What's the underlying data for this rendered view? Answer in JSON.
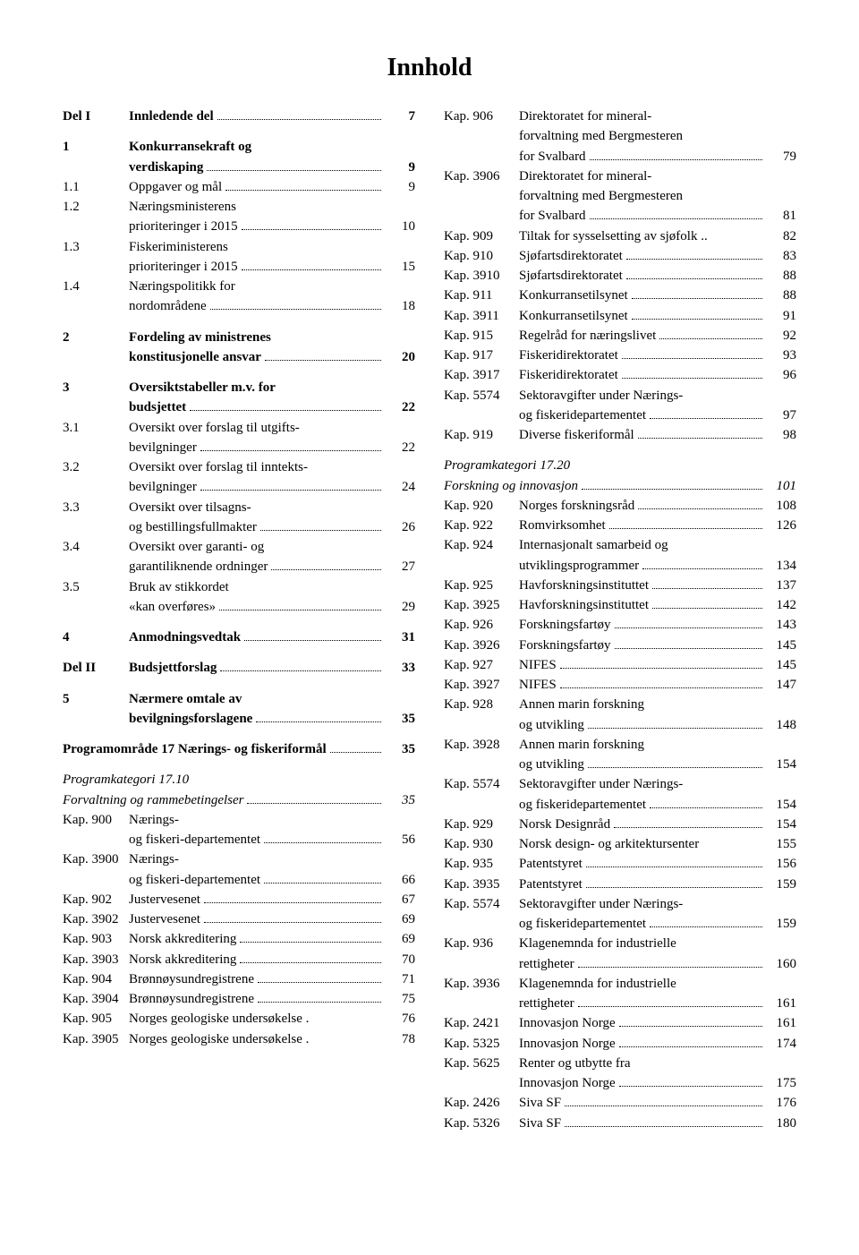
{
  "title": "Innhold",
  "col1": [
    {
      "lbl": "Del I",
      "text": "Innledende del",
      "page": "7",
      "bold": true,
      "multiline": false
    },
    {
      "spacer": true
    },
    {
      "lbl": "1",
      "text": "Konkurransekraft og verdiskaping",
      "page": "9",
      "bold": true,
      "multiline": true
    },
    {
      "lbl": "1.1",
      "text": "Oppgaver og mål",
      "page": "9",
      "multiline": false
    },
    {
      "lbl": "1.2",
      "text": "Næringsministerens prioriteringer i 2015",
      "page": "10",
      "multiline": true
    },
    {
      "lbl": "1.3",
      "text": "Fiskeriministerens prioriteringer i 2015",
      "page": "15",
      "multiline": true
    },
    {
      "lbl": "1.4",
      "text": "Næringspolitikk for nordområdene",
      "page": "18",
      "multiline": true
    },
    {
      "spacer": true
    },
    {
      "lbl": "2",
      "text": "Fordeling av ministrenes konstitusjonelle ansvar",
      "page": "20",
      "bold": true,
      "multiline": true
    },
    {
      "spacer": true
    },
    {
      "lbl": "3",
      "text": "Oversiktstabeller m.v. for budsjettet",
      "page": "22",
      "bold": true,
      "multiline": true
    },
    {
      "lbl": "3.1",
      "text": "Oversikt over forslag til utgifts-bevilgninger",
      "page": "22",
      "multiline": true,
      "hyphen": true
    },
    {
      "lbl": "3.2",
      "text": "Oversikt over forslag til inntekts-bevilgninger",
      "page": "24",
      "multiline": true,
      "hyphen": true
    },
    {
      "lbl": "3.3",
      "text": "Oversikt over tilsagns- og bestillingsfullmakter",
      "page": "26",
      "multiline": true
    },
    {
      "lbl": "3.4",
      "text": "Oversikt over garanti- og garantiliknende ordninger",
      "page": "27",
      "multiline": true
    },
    {
      "lbl": "3.5",
      "text": "Bruk av stikkordet «kan overføres»",
      "page": "29",
      "multiline": true
    },
    {
      "spacer": true
    },
    {
      "lbl": "4",
      "text": "Anmodningsvedtak",
      "page": "31",
      "bold": true,
      "multiline": false
    },
    {
      "spacer": true
    },
    {
      "lbl": "Del II",
      "text": "Budsjettforslag",
      "page": "33",
      "bold": true,
      "multiline": false
    },
    {
      "spacer": true
    },
    {
      "lbl": "5",
      "text": "Nærmere omtale av bevilgningsforslagene",
      "page": "35",
      "bold": true,
      "multiline": true
    },
    {
      "spacer": true
    },
    {
      "heading": true,
      "text": "Programområde 17 Nærings- og fiskeriformål",
      "page": "35",
      "bold": true
    },
    {
      "spacer": true
    },
    {
      "heading": true,
      "text": "Programkategori 17.10",
      "noPage": true,
      "italic": true
    },
    {
      "heading": true,
      "text": "Forvaltning og rammebetingelser",
      "page": "35",
      "italic": true
    },
    {
      "lbl": "Kap. 900",
      "text": "Nærings- og fiskeri-departementet",
      "page": "56",
      "multiline": true,
      "hyphen": true
    },
    {
      "lbl": "Kap. 3900",
      "text": "Nærings- og fiskeri-departementet",
      "page": "66",
      "multiline": true,
      "hyphen": true
    },
    {
      "lbl": "Kap. 902",
      "text": "Justervesenet",
      "page": "67",
      "multiline": false
    },
    {
      "lbl": "Kap. 3902",
      "text": "Justervesenet",
      "page": "69",
      "multiline": false
    },
    {
      "lbl": "Kap. 903",
      "text": "Norsk akkreditering",
      "page": "69",
      "multiline": false
    },
    {
      "lbl": "Kap. 3903",
      "text": "Norsk akkreditering",
      "page": "70",
      "multiline": false
    },
    {
      "lbl": "Kap. 904",
      "text": "Brønnøysundregistrene",
      "page": "71",
      "multiline": false
    },
    {
      "lbl": "Kap. 3904",
      "text": "Brønnøysundregistrene",
      "page": "75",
      "multiline": false
    },
    {
      "lbl": "Kap. 905",
      "text": "Norges geologiske undersøkelse .",
      "page": "76",
      "multiline": false,
      "noLead": true
    },
    {
      "lbl": "Kap. 3905",
      "text": "Norges geologiske undersøkelse .",
      "page": "78",
      "multiline": false,
      "noLead": true
    }
  ],
  "col2": [
    {
      "lbl": "Kap. 906",
      "text": "Direktoratet for mineral-forvaltning med Bergmesteren for Svalbard",
      "page": "79",
      "multiline": true,
      "hyphen": true,
      "lines": 3
    },
    {
      "lbl": "Kap. 3906",
      "text": "Direktoratet for mineral-forvaltning med Bergmesteren for Svalbard",
      "page": "81",
      "multiline": true,
      "hyphen": true,
      "lines": 3
    },
    {
      "lbl": "Kap. 909",
      "text": "Tiltak for sysselsetting av sjøfolk ..",
      "page": "82",
      "multiline": false,
      "noLead": true
    },
    {
      "lbl": "Kap. 910",
      "text": "Sjøfartsdirektoratet",
      "page": "83",
      "multiline": false
    },
    {
      "lbl": "Kap. 3910",
      "text": "Sjøfartsdirektoratet",
      "page": "88",
      "multiline": false
    },
    {
      "lbl": "Kap. 911",
      "text": "Konkurransetilsynet",
      "page": "88",
      "multiline": false
    },
    {
      "lbl": "Kap. 3911",
      "text": "Konkurransetilsynet",
      "page": "91",
      "multiline": false
    },
    {
      "lbl": "Kap. 915",
      "text": "Regelråd for næringslivet",
      "page": "92",
      "multiline": false
    },
    {
      "lbl": "Kap. 917",
      "text": "Fiskeridirektoratet",
      "page": "93",
      "multiline": false
    },
    {
      "lbl": "Kap. 3917",
      "text": "Fiskeridirektoratet",
      "page": "96",
      "multiline": false
    },
    {
      "lbl": "Kap. 5574",
      "text": "Sektoravgifter under Nærings- og fiskeridepartementet",
      "page": "97",
      "multiline": true,
      "hyphen": true
    },
    {
      "lbl": "Kap. 919",
      "text": "Diverse fiskeriformål",
      "page": "98",
      "multiline": false
    },
    {
      "spacer": true
    },
    {
      "heading": true,
      "text": "Programkategori 17.20",
      "noPage": true,
      "italic": true
    },
    {
      "heading": true,
      "text": "Forskning og innovasjon",
      "page": "101",
      "italic": true
    },
    {
      "lbl": "Kap. 920",
      "text": "Norges forskningsråd",
      "page": "108",
      "multiline": false
    },
    {
      "lbl": "Kap. 922",
      "text": "Romvirksomhet",
      "page": "126",
      "multiline": false
    },
    {
      "lbl": "Kap. 924",
      "text": "Internasjonalt samarbeid og utviklingsprogrammer",
      "page": "134",
      "multiline": true
    },
    {
      "lbl": "Kap. 925",
      "text": "Havforskningsinstituttet",
      "page": "137",
      "multiline": false
    },
    {
      "lbl": "Kap. 3925",
      "text": "Havforskningsinstituttet",
      "page": "142",
      "multiline": false
    },
    {
      "lbl": "Kap. 926",
      "text": "Forskningsfartøy",
      "page": "143",
      "multiline": false
    },
    {
      "lbl": "Kap. 3926",
      "text": "Forskningsfartøy",
      "page": "145",
      "multiline": false
    },
    {
      "lbl": "Kap. 927",
      "text": "NIFES",
      "page": "145",
      "multiline": false
    },
    {
      "lbl": "Kap. 3927",
      "text": "NIFES",
      "page": "147",
      "multiline": false
    },
    {
      "lbl": "Kap. 928",
      "text": "Annen marin forskning og utvikling",
      "page": "148",
      "multiline": true
    },
    {
      "lbl": "Kap. 3928",
      "text": "Annen marin forskning og utvikling",
      "page": "154",
      "multiline": true
    },
    {
      "lbl": "Kap. 5574",
      "text": "Sektoravgifter under Nærings- og fiskeridepartementet",
      "page": "154",
      "multiline": true,
      "hyphen": true
    },
    {
      "lbl": "Kap. 929",
      "text": "Norsk Designråd",
      "page": "154",
      "multiline": false
    },
    {
      "lbl": "Kap. 930",
      "text": "Norsk design- og arkitektursenter",
      "page": "155",
      "multiline": false,
      "noLead": true
    },
    {
      "lbl": "Kap. 935",
      "text": "Patentstyret",
      "page": "156",
      "multiline": false
    },
    {
      "lbl": "Kap. 3935",
      "text": "Patentstyret",
      "page": "159",
      "multiline": false
    },
    {
      "lbl": "Kap. 5574",
      "text": "Sektoravgifter under Nærings- og fiskeridepartementet",
      "page": "159",
      "multiline": true,
      "hyphen": true
    },
    {
      "lbl": "Kap. 936",
      "text": "Klagenemnda for industrielle rettigheter",
      "page": "160",
      "multiline": true
    },
    {
      "lbl": "Kap. 3936",
      "text": "Klagenemnda for industrielle rettigheter",
      "page": "161",
      "multiline": true
    },
    {
      "lbl": "Kap. 2421",
      "text": "Innovasjon Norge",
      "page": "161",
      "multiline": false
    },
    {
      "lbl": "Kap. 5325",
      "text": "Innovasjon Norge",
      "page": "174",
      "multiline": false
    },
    {
      "lbl": "Kap. 5625",
      "text": "Renter og utbytte fra Innovasjon Norge",
      "page": "175",
      "multiline": true
    },
    {
      "lbl": "Kap. 2426",
      "text": "Siva SF",
      "page": "176",
      "multiline": false
    },
    {
      "lbl": "Kap. 5326",
      "text": "Siva SF",
      "page": "180",
      "multiline": false
    }
  ]
}
